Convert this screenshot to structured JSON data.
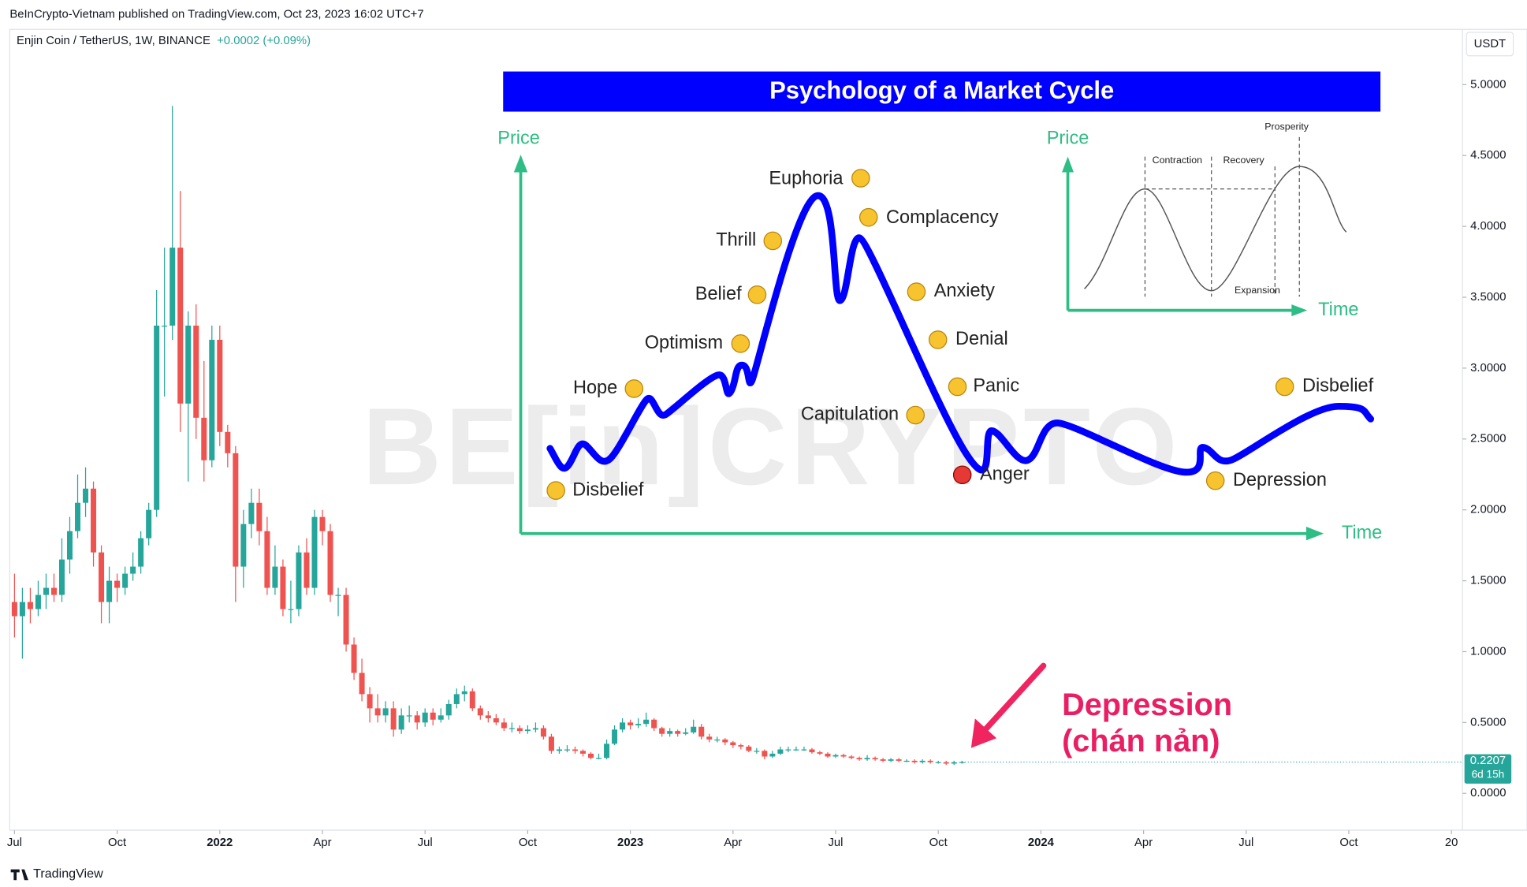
{
  "header": {
    "publisher_line": "BeInCrypto-Vietnam published on TradingView.com, Oct 23, 2023 16:02 UTC+7",
    "symbol": "Enjin Coin / TetherUS, 1W, BINANCE",
    "change": "+0.0002 (+0.09%)",
    "currency": "USDT",
    "brand": "TradingView"
  },
  "chart_data": {
    "type": "candlestick",
    "up_color": "#26a69a",
    "down_color": "#ef5350",
    "grid": false,
    "xlim": [
      -0.6,
      183.4
    ],
    "xticks": [
      {
        "value": 0,
        "label": "Jul"
      },
      {
        "value": 13,
        "label": "Oct"
      },
      {
        "value": 26,
        "label": "2022"
      },
      {
        "value": 39,
        "label": "Apr"
      },
      {
        "value": 52,
        "label": "Jul"
      },
      {
        "value": 65,
        "label": "Oct"
      },
      {
        "value": 78,
        "label": "2023"
      },
      {
        "value": 91,
        "label": "Apr"
      },
      {
        "value": 104,
        "label": "Jul"
      },
      {
        "value": 117,
        "label": "Oct"
      },
      {
        "value": 130,
        "label": "2024"
      },
      {
        "value": 143,
        "label": "Apr"
      },
      {
        "value": 156,
        "label": "Jul"
      },
      {
        "value": 169,
        "label": "Oct"
      },
      {
        "value": 182,
        "label": "20"
      }
    ],
    "ylim": [
      -0.26,
      5.39
    ],
    "yticks": [
      {
        "value": 0,
        "label": "0.0000"
      },
      {
        "value": 0.5,
        "label": "0.5000"
      },
      {
        "value": 1,
        "label": "1.0000"
      },
      {
        "value": 1.5,
        "label": "1.5000"
      },
      {
        "value": 2,
        "label": "2.0000"
      },
      {
        "value": 2.5,
        "label": "2.5000"
      },
      {
        "value": 3,
        "label": "3.0000"
      },
      {
        "value": 3.5,
        "label": "3.5000"
      },
      {
        "value": 4,
        "label": "4.0000"
      },
      {
        "value": 4.5,
        "label": "4.5000"
      },
      {
        "value": 5,
        "label": "5.0000"
      }
    ],
    "countdown": "6d 15h",
    "series": [
      {
        "name": "ENJUSDT",
        "ohlc": [
          [
            1.35,
            1.55,
            1.1,
            1.25
          ],
          [
            1.25,
            1.45,
            0.95,
            1.35
          ],
          [
            1.35,
            1.45,
            1.2,
            1.3
          ],
          [
            1.3,
            1.5,
            1.25,
            1.4
          ],
          [
            1.4,
            1.55,
            1.3,
            1.45
          ],
          [
            1.45,
            1.55,
            1.35,
            1.4
          ],
          [
            1.4,
            1.8,
            1.35,
            1.65
          ],
          [
            1.65,
            1.95,
            1.55,
            1.85
          ],
          [
            1.85,
            2.25,
            1.8,
            2.05
          ],
          [
            2.05,
            2.3,
            1.95,
            2.15
          ],
          [
            2.15,
            2.2,
            1.6,
            1.7
          ],
          [
            1.7,
            1.75,
            1.2,
            1.35
          ],
          [
            1.35,
            1.6,
            1.2,
            1.5
          ],
          [
            1.5,
            1.55,
            1.35,
            1.45
          ],
          [
            1.45,
            1.6,
            1.4,
            1.55
          ],
          [
            1.55,
            1.7,
            1.5,
            1.6
          ],
          [
            1.6,
            1.85,
            1.55,
            1.8
          ],
          [
            1.8,
            2.05,
            1.75,
            2.0
          ],
          [
            2.0,
            3.55,
            1.95,
            3.3
          ],
          [
            3.3,
            3.85,
            2.8,
            3.3
          ],
          [
            3.3,
            4.85,
            3.2,
            3.85
          ],
          [
            3.85,
            4.25,
            2.55,
            2.75
          ],
          [
            2.75,
            3.4,
            2.2,
            3.3
          ],
          [
            3.3,
            3.45,
            2.5,
            2.65
          ],
          [
            2.65,
            3.05,
            2.2,
            2.35
          ],
          [
            2.35,
            3.3,
            2.3,
            3.2
          ],
          [
            3.2,
            3.3,
            2.45,
            2.55
          ],
          [
            2.55,
            2.6,
            2.3,
            2.4
          ],
          [
            2.4,
            2.45,
            1.35,
            1.6
          ],
          [
            1.6,
            2.0,
            1.45,
            1.9
          ],
          [
            1.9,
            2.15,
            1.8,
            2.05
          ],
          [
            2.05,
            2.15,
            1.75,
            1.85
          ],
          [
            1.85,
            1.95,
            1.4,
            1.45
          ],
          [
            1.45,
            1.75,
            1.4,
            1.6
          ],
          [
            1.6,
            1.65,
            1.25,
            1.3
          ],
          [
            1.3,
            1.5,
            1.2,
            1.3
          ],
          [
            1.3,
            1.75,
            1.25,
            1.7
          ],
          [
            1.7,
            1.8,
            1.4,
            1.45
          ],
          [
            1.45,
            2.0,
            1.4,
            1.95
          ],
          [
            1.95,
            2.0,
            1.75,
            1.85
          ],
          [
            1.85,
            1.9,
            1.35,
            1.4
          ],
          [
            1.4,
            1.45,
            1.25,
            1.4
          ],
          [
            1.4,
            1.45,
            1.0,
            1.05
          ],
          [
            1.05,
            1.1,
            0.8,
            0.85
          ],
          [
            0.85,
            0.95,
            0.65,
            0.7
          ],
          [
            0.7,
            0.75,
            0.5,
            0.6
          ],
          [
            0.6,
            0.7,
            0.5,
            0.55
          ],
          [
            0.55,
            0.65,
            0.5,
            0.6
          ],
          [
            0.6,
            0.65,
            0.4,
            0.45
          ],
          [
            0.45,
            0.6,
            0.42,
            0.55
          ],
          [
            0.55,
            0.62,
            0.5,
            0.55
          ],
          [
            0.55,
            0.58,
            0.45,
            0.5
          ],
          [
            0.5,
            0.6,
            0.47,
            0.57
          ],
          [
            0.57,
            0.6,
            0.48,
            0.52
          ],
          [
            0.52,
            0.6,
            0.5,
            0.55
          ],
          [
            0.55,
            0.66,
            0.52,
            0.63
          ],
          [
            0.63,
            0.74,
            0.6,
            0.7
          ],
          [
            0.7,
            0.76,
            0.65,
            0.72
          ],
          [
            0.72,
            0.74,
            0.58,
            0.6
          ],
          [
            0.6,
            0.62,
            0.52,
            0.55
          ],
          [
            0.55,
            0.58,
            0.5,
            0.53
          ],
          [
            0.53,
            0.56,
            0.48,
            0.5
          ],
          [
            0.5,
            0.53,
            0.44,
            0.46
          ],
          [
            0.46,
            0.5,
            0.43,
            0.46
          ],
          [
            0.46,
            0.48,
            0.42,
            0.44
          ],
          [
            0.44,
            0.48,
            0.42,
            0.45
          ],
          [
            0.45,
            0.5,
            0.43,
            0.46
          ],
          [
            0.46,
            0.48,
            0.38,
            0.4
          ],
          [
            0.4,
            0.42,
            0.28,
            0.3
          ],
          [
            0.3,
            0.33,
            0.28,
            0.31
          ],
          [
            0.31,
            0.34,
            0.29,
            0.31
          ],
          [
            0.31,
            0.33,
            0.28,
            0.3
          ],
          [
            0.3,
            0.31,
            0.26,
            0.28
          ],
          [
            0.28,
            0.29,
            0.24,
            0.25
          ],
          [
            0.25,
            0.28,
            0.24,
            0.25
          ],
          [
            0.25,
            0.38,
            0.24,
            0.35
          ],
          [
            0.35,
            0.48,
            0.34,
            0.45
          ],
          [
            0.45,
            0.53,
            0.43,
            0.5
          ],
          [
            0.5,
            0.52,
            0.45,
            0.48
          ],
          [
            0.48,
            0.53,
            0.46,
            0.49
          ],
          [
            0.49,
            0.57,
            0.47,
            0.52
          ],
          [
            0.52,
            0.53,
            0.44,
            0.46
          ],
          [
            0.46,
            0.47,
            0.4,
            0.42
          ],
          [
            0.42,
            0.46,
            0.4,
            0.44
          ],
          [
            0.44,
            0.45,
            0.4,
            0.42
          ],
          [
            0.42,
            0.46,
            0.41,
            0.43
          ],
          [
            0.43,
            0.52,
            0.42,
            0.47
          ],
          [
            0.47,
            0.49,
            0.38,
            0.4
          ],
          [
            0.4,
            0.42,
            0.36,
            0.38
          ],
          [
            0.38,
            0.4,
            0.36,
            0.38
          ],
          [
            0.38,
            0.39,
            0.34,
            0.36
          ],
          [
            0.36,
            0.37,
            0.32,
            0.34
          ],
          [
            0.34,
            0.35,
            0.31,
            0.33
          ],
          [
            0.33,
            0.34,
            0.29,
            0.3
          ],
          [
            0.3,
            0.32,
            0.28,
            0.3
          ],
          [
            0.3,
            0.31,
            0.24,
            0.26
          ],
          [
            0.26,
            0.3,
            0.25,
            0.28
          ],
          [
            0.28,
            0.33,
            0.27,
            0.31
          ],
          [
            0.31,
            0.33,
            0.29,
            0.31
          ],
          [
            0.31,
            0.33,
            0.3,
            0.31
          ],
          [
            0.31,
            0.33,
            0.3,
            0.31
          ],
          [
            0.31,
            0.32,
            0.28,
            0.29
          ],
          [
            0.29,
            0.3,
            0.27,
            0.28
          ],
          [
            0.28,
            0.29,
            0.25,
            0.26
          ],
          [
            0.26,
            0.28,
            0.25,
            0.27
          ],
          [
            0.27,
            0.28,
            0.25,
            0.26
          ],
          [
            0.26,
            0.27,
            0.24,
            0.25
          ],
          [
            0.25,
            0.26,
            0.23,
            0.24
          ],
          [
            0.24,
            0.27,
            0.23,
            0.25
          ],
          [
            0.25,
            0.26,
            0.23,
            0.24
          ],
          [
            0.24,
            0.25,
            0.22,
            0.23
          ],
          [
            0.23,
            0.25,
            0.22,
            0.24
          ],
          [
            0.24,
            0.25,
            0.22,
            0.23
          ],
          [
            0.23,
            0.24,
            0.22,
            0.23
          ],
          [
            0.23,
            0.24,
            0.21,
            0.22
          ],
          [
            0.22,
            0.24,
            0.21,
            0.23
          ],
          [
            0.23,
            0.24,
            0.21,
            0.22
          ],
          [
            0.22,
            0.23,
            0.21,
            0.22
          ],
          [
            0.22,
            0.23,
            0.2,
            0.21
          ],
          [
            0.21,
            0.23,
            0.2,
            0.22
          ],
          [
            0.22,
            0.23,
            0.21,
            0.2207
          ]
        ]
      }
    ]
  },
  "watermark": "BE[in]CRYPTO",
  "infographic": {
    "title": "Psychology of a Market Cycle",
    "price_label": "Price",
    "time_label": "Time",
    "stages": [
      "Disbelief",
      "Hope",
      "Optimism",
      "Belief",
      "Thrill",
      "Euphoria",
      "Complacency",
      "Anxiety",
      "Denial",
      "Panic",
      "Capitulation",
      "Anger",
      "Depression",
      "Disbelief"
    ],
    "inset": {
      "price_label": "Price",
      "time_label": "Time",
      "phases": [
        "Contraction",
        "Recovery",
        "Prosperity",
        "Expansion"
      ]
    }
  },
  "annotation": {
    "lines": [
      "Depression",
      "(chán nản)"
    ]
  }
}
